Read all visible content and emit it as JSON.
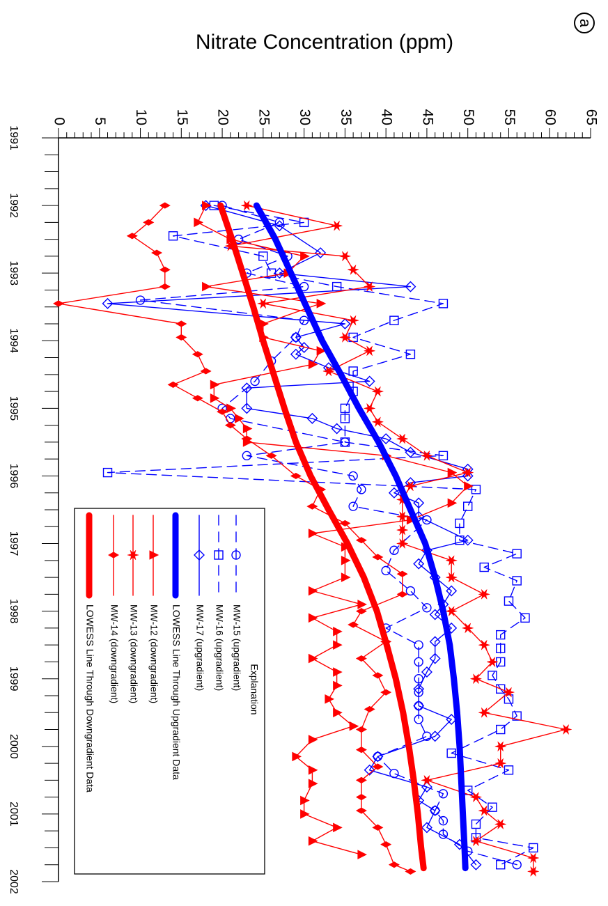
{
  "panel_label": "a",
  "chart_data": {
    "type": "line",
    "title": "",
    "ylabel": "Nitrate Concentration (ppm)",
    "xlabel": "",
    "x_range": [
      1991,
      2002
    ],
    "y_range": [
      0,
      65
    ],
    "y_ticks": [
      0,
      5,
      10,
      15,
      20,
      25,
      30,
      35,
      40,
      45,
      50,
      55,
      60,
      65
    ],
    "x_ticks": [
      1991,
      1992,
      1993,
      1994,
      1995,
      1996,
      1997,
      1998,
      1999,
      2000,
      2001,
      2002
    ],
    "grid": false,
    "legend": {
      "title": "Explanation",
      "placement": "lower-left",
      "entries": [
        "MW-15 (upgradient)",
        "MW-16 (upgradient)",
        "MW-17 (upgradient)",
        "LOWESS Line Through Upgradient Data",
        "MW-12 (downgradient)",
        "MW-13 (downgradient)",
        "MW-14 (downgradient)",
        "LOWESS Line Through Downgradient Data"
      ]
    },
    "series": [
      {
        "name": "MW-15 (upgradient)",
        "color": "#0000ff",
        "dash": "dashed",
        "marker": "circle",
        "x": [
          1992.0,
          1992.25,
          1992.5,
          1992.75,
          1993.0,
          1993.2,
          1993.4,
          1993.7,
          1993.95,
          1994.3,
          1994.6,
          1995.0,
          1995.15,
          1995.5,
          1995.7,
          1996.0,
          1996.2,
          1996.45,
          1996.65,
          1997.1,
          1997.4,
          1997.7,
          1997.95,
          1998.25,
          1998.5,
          1998.75,
          1999.0,
          1999.2,
          1999.4,
          1999.6,
          1999.85,
          2000.15,
          2000.4,
          2000.7,
          2000.95,
          2001.1,
          2001.3,
          2001.55,
          2001.75
        ],
        "y": [
          20,
          27,
          22,
          28,
          23,
          30,
          10,
          30,
          29,
          26,
          24,
          20,
          21,
          35,
          23,
          36,
          37,
          36,
          45,
          41,
          40,
          43,
          45,
          40,
          44,
          44,
          44,
          44,
          44,
          44,
          45,
          39,
          41,
          47,
          46,
          47,
          47,
          50,
          56
        ]
      },
      {
        "name": "MW-16 (upgradient)",
        "color": "#0000ff",
        "dash": "dashed",
        "marker": "square",
        "x": [
          1992.0,
          1992.25,
          1992.45,
          1992.75,
          1993.0,
          1993.2,
          1993.45,
          1993.7,
          1993.95,
          1994.2,
          1994.45,
          1994.75,
          1995.0,
          1995.15,
          1995.5,
          1995.7,
          1995.95,
          1996.2,
          1996.45,
          1996.7,
          1996.95,
          1997.15,
          1997.35,
          1997.55,
          1997.85,
          1998.1,
          1998.35,
          1998.55,
          1998.75,
          1998.95,
          1999.15,
          1999.3,
          1999.55,
          1999.75,
          2000.1,
          2000.35,
          2000.65,
          2000.9,
          2001.15,
          2001.35,
          2001.5,
          2001.75
        ],
        "y": [
          19,
          30,
          14,
          25,
          26,
          34,
          47,
          41,
          36,
          43,
          36,
          36,
          35,
          35,
          35,
          47,
          6,
          51,
          50,
          49,
          49,
          56,
          52,
          56,
          55,
          57,
          54,
          54,
          54,
          53,
          54,
          55,
          56,
          54,
          48,
          55,
          50,
          53,
          51,
          51,
          58,
          54
        ]
      },
      {
        "name": "MW-17 (upgradient)",
        "color": "#0000ff",
        "dash": "solid",
        "marker": "diamond",
        "x": [
          1992.0,
          1992.3,
          1992.7,
          1993.0,
          1993.2,
          1993.45,
          1993.75,
          1993.95,
          1994.1,
          1994.2,
          1994.4,
          1994.6,
          1994.7,
          1995.0,
          1995.15,
          1995.3,
          1995.45,
          1995.65,
          1995.9,
          1996.0,
          1996.1,
          1996.25,
          1996.4,
          1996.6,
          1996.95,
          1997.1,
          1997.3,
          1997.5,
          1997.7,
          1997.9,
          1998.05,
          1998.25,
          1998.45,
          1998.7,
          1998.9,
          1999.15,
          1999.4,
          1999.6,
          1999.85,
          2000.15,
          2000.35,
          2000.6,
          2000.8,
          2000.95,
          2001.2,
          2001.45,
          2001.75
        ],
        "y": [
          18,
          27,
          32,
          27,
          43,
          6,
          35,
          29,
          30,
          29,
          33,
          38,
          23,
          23,
          31,
          34,
          40,
          43,
          50,
          50,
          43,
          41,
          44,
          44,
          50,
          45,
          44,
          46,
          48,
          47,
          46,
          48,
          46,
          46,
          45,
          44,
          44,
          48,
          46,
          39,
          38,
          45,
          44,
          46,
          45,
          49,
          51
        ]
      },
      {
        "name": "LOWESS Line Through Upgradient Data",
        "color": "#0000ff",
        "dash": "solid",
        "marker": "none",
        "lowess": true,
        "x": [
          1992.0,
          1992.5,
          1993.0,
          1993.5,
          1994.0,
          1994.5,
          1995.0,
          1995.5,
          1996.0,
          1996.5,
          1997.0,
          1997.5,
          1998.0,
          1998.5,
          1999.0,
          1999.5,
          2000.0,
          2000.5,
          2001.0,
          2001.5,
          2001.8
        ],
        "y": [
          24.2,
          26.5,
          28.4,
          30.3,
          32.2,
          34.5,
          36.7,
          39.1,
          41.2,
          43.0,
          44.8,
          46.0,
          47.0,
          47.8,
          48.3,
          48.7,
          49.0,
          49.2,
          49.4,
          49.6,
          49.7
        ]
      },
      {
        "name": "MW-12 (downgradient)",
        "color": "#ff0000",
        "dash": "solid",
        "marker": "triangle",
        "x": [
          1992.0,
          1992.25,
          1992.5,
          1992.75,
          1993.0,
          1993.2,
          1993.45,
          1993.75,
          1993.95,
          1994.15,
          1994.35,
          1994.65,
          1994.85,
          1995.0,
          1995.15,
          1995.3,
          1995.5,
          1995.7,
          1995.95,
          1996.15,
          1996.4,
          1996.65,
          1996.85,
          1997.05,
          1997.25,
          1997.5,
          1997.7,
          1997.9,
          1998.1,
          1998.3,
          1998.5,
          1998.7,
          1998.9,
          1999.1,
          1999.3,
          1999.5,
          1999.7,
          1999.9,
          2000.15,
          2000.35,
          2000.55,
          2000.8,
          2001.0,
          2001.2,
          2001.4,
          2001.6
        ],
        "y": [
          18,
          17,
          21,
          30,
          28,
          18,
          32,
          25,
          25,
          32,
          31,
          19,
          19,
          21,
          22,
          23,
          23,
          40,
          48,
          50,
          48,
          43,
          31,
          35,
          35,
          35,
          31,
          37,
          31,
          34,
          34,
          31,
          34,
          34,
          33,
          34,
          36,
          31,
          29,
          31,
          31,
          30,
          30,
          34,
          31,
          37
        ]
      },
      {
        "name": "MW-13 (downgradient)",
        "color": "#ff0000",
        "dash": "solid",
        "marker": "star",
        "x": [
          1992.0,
          1992.3,
          1992.6,
          1992.75,
          1992.95,
          1993.2,
          1993.45,
          1993.7,
          1993.95,
          1994.15,
          1994.45,
          1994.75,
          1995.0,
          1995.2,
          1995.45,
          1995.7,
          1995.95,
          1996.15,
          1996.35,
          1996.6,
          1996.8,
          1997.0,
          1997.25,
          1997.5,
          1997.75,
          1998.0,
          1998.25,
          1998.5,
          1998.75,
          1999.0,
          1999.2,
          1999.5,
          1999.75,
          2000.0,
          2000.25,
          2000.5,
          2000.75,
          2000.95,
          2001.15,
          2001.4,
          2001.65,
          2001.85
        ],
        "y": [
          23,
          34,
          21,
          35,
          36,
          38,
          25,
          36,
          35,
          38,
          33,
          39,
          38,
          39,
          42,
          45,
          50,
          43,
          42,
          42,
          42,
          42,
          48,
          48,
          52,
          48,
          50,
          52,
          53,
          51,
          55,
          52,
          62,
          54,
          54,
          45,
          51,
          52,
          54,
          51,
          58,
          58
        ]
      },
      {
        "name": "MW-14 (downgradient)",
        "color": "#ff0000",
        "dash": "solid",
        "marker": "cross",
        "x": [
          1992.0,
          1992.25,
          1992.45,
          1992.7,
          1992.95,
          1993.2,
          1993.45,
          1993.75,
          1993.95,
          1994.2,
          1994.45,
          1994.65,
          1994.85,
          1995.05,
          1995.25,
          1995.45,
          1995.7,
          1996.0,
          1996.2,
          1996.45,
          1996.7,
          1996.95,
          1997.2,
          1997.45,
          1997.75,
          1998.0,
          1998.2,
          1998.45,
          1998.7,
          1998.95,
          1999.2,
          1999.45,
          1999.75,
          2000.05,
          2000.3,
          2000.5,
          2000.75,
          2000.95,
          2001.2,
          2001.45,
          2001.75,
          2001.85
        ],
        "y": [
          13,
          11,
          9,
          12,
          13,
          13,
          0,
          15,
          15,
          17,
          18,
          14,
          17,
          20,
          21,
          23,
          26,
          29,
          32,
          31,
          35,
          37,
          39,
          42,
          42,
          37,
          36,
          40,
          37,
          39,
          40,
          38,
          37,
          37,
          39,
          37,
          37,
          37,
          39,
          40,
          41,
          43
        ]
      },
      {
        "name": "LOWESS Line Through Downgradient Data",
        "color": "#ff0000",
        "dash": "solid",
        "marker": "none",
        "lowess": true,
        "x": [
          1992.0,
          1992.5,
          1993.0,
          1993.5,
          1994.0,
          1994.5,
          1995.0,
          1995.5,
          1996.0,
          1996.5,
          1997.0,
          1997.5,
          1998.0,
          1998.5,
          1999.0,
          1999.5,
          2000.0,
          2000.5,
          2001.0,
          2001.5,
          2001.8
        ],
        "y": [
          19.8,
          21.2,
          22.5,
          23.8,
          25.0,
          26.3,
          27.6,
          29.0,
          30.8,
          33.0,
          35.3,
          37.3,
          38.9,
          40.1,
          41.2,
          42.1,
          42.8,
          43.4,
          43.9,
          44.3,
          44.6
        ]
      }
    ]
  }
}
